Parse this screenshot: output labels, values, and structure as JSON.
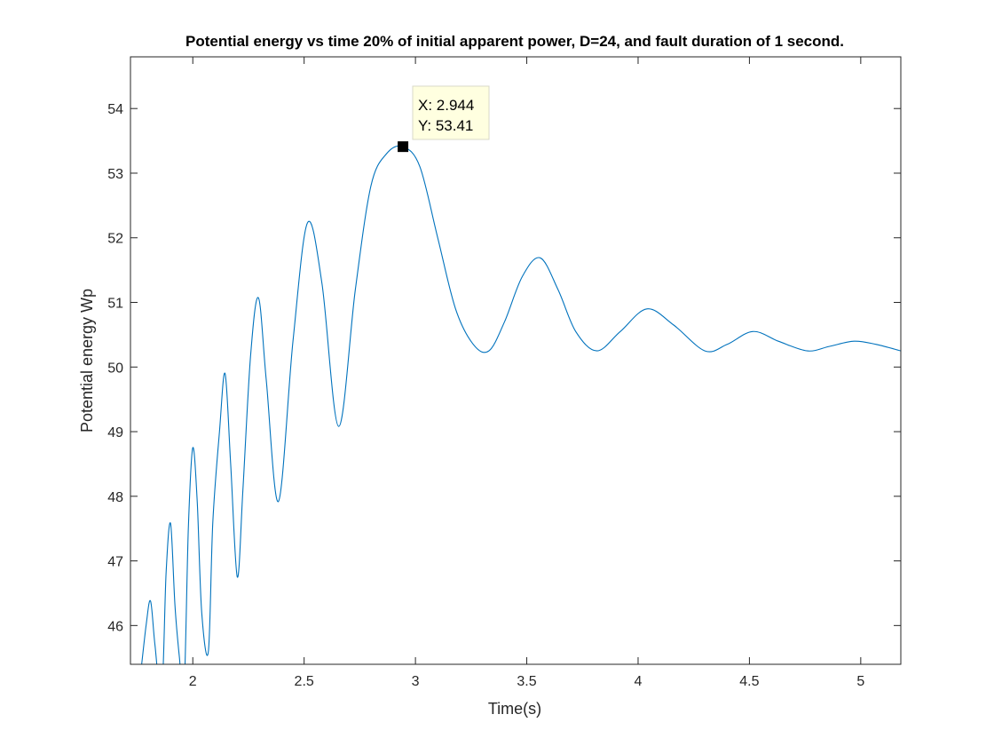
{
  "chart_data": {
    "type": "line",
    "title": "Potential energy vs time 20% of initial apparent power,  D=24, and fault duration of 1 second.",
    "xlabel": "Time(s)",
    "ylabel": "Potential energy Wp",
    "xlim": [
      1.72,
      5.18
    ],
    "ylim": [
      45.4,
      54.8
    ],
    "xticks": [
      2,
      2.5,
      3,
      3.5,
      4,
      4.5,
      5
    ],
    "xtick_labels": [
      "2",
      "2.5",
      "3",
      "3.5",
      "4",
      "4.5",
      "5"
    ],
    "yticks": [
      46,
      47,
      48,
      49,
      50,
      51,
      52,
      53,
      54
    ],
    "ytick_labels": [
      "46",
      "47",
      "48",
      "49",
      "50",
      "51",
      "52",
      "53",
      "54"
    ],
    "grid": false,
    "line_color": "#0072BD",
    "series": [
      {
        "name": "",
        "x": [
          1.74,
          1.76,
          1.79,
          1.81,
          1.83,
          1.86,
          1.88,
          1.9,
          1.92,
          1.94,
          1.96,
          1.98,
          2.0,
          2.02,
          2.04,
          2.07,
          2.09,
          2.12,
          2.145,
          2.17,
          2.2,
          2.225,
          2.26,
          2.295,
          2.33,
          2.385,
          2.45,
          2.515,
          2.58,
          2.655,
          2.73,
          2.8,
          2.87,
          2.944,
          3.02,
          3.1,
          3.18,
          3.26,
          3.33,
          3.4,
          3.48,
          3.56,
          3.64,
          3.72,
          3.815,
          3.92,
          4.04,
          4.16,
          4.3,
          4.4,
          4.515,
          4.63,
          4.76,
          4.86,
          4.97,
          5.07,
          5.18
        ],
        "y": [
          44.8,
          45.1,
          46.0,
          46.38,
          45.7,
          44.9,
          46.8,
          47.58,
          46.3,
          45.5,
          44.9,
          47.5,
          48.75,
          47.9,
          46.2,
          45.6,
          47.6,
          49.0,
          49.9,
          48.5,
          46.75,
          48.1,
          50.2,
          51.07,
          49.8,
          47.92,
          50.4,
          52.23,
          51.3,
          49.08,
          51.2,
          52.8,
          53.3,
          53.41,
          53.1,
          52.0,
          50.9,
          50.35,
          50.25,
          50.7,
          51.4,
          51.69,
          51.2,
          50.55,
          50.25,
          50.55,
          50.9,
          50.65,
          50.25,
          50.35,
          50.55,
          50.4,
          50.25,
          50.32,
          50.4,
          50.35,
          50.25
        ]
      }
    ],
    "datatip": {
      "x_text": "X: 2.944",
      "y_text": "Y: 53.41",
      "x": 2.944,
      "y": 53.41
    }
  }
}
